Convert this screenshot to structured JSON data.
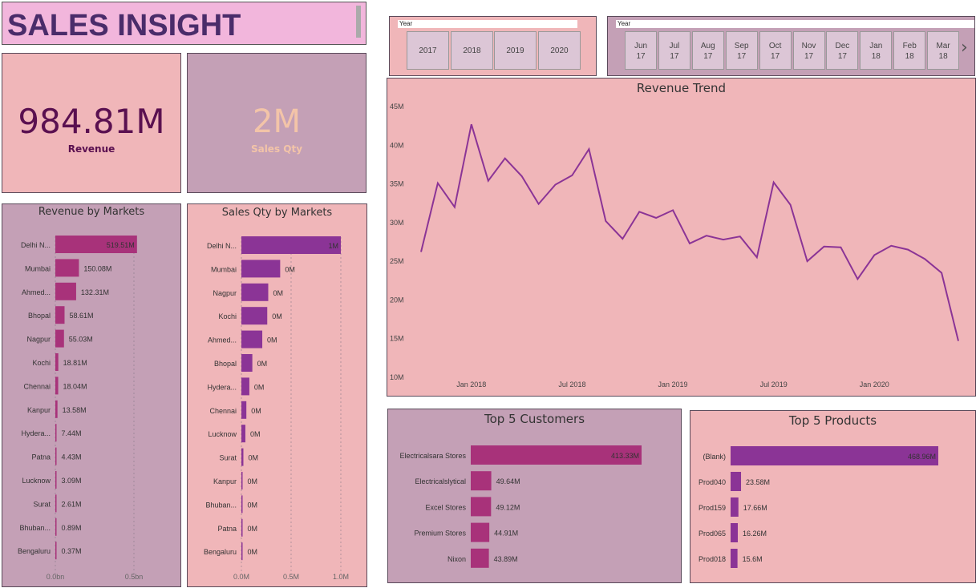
{
  "header": {
    "title": "SALES INSIGHT"
  },
  "kpi": {
    "revenue_value": "984.81M",
    "revenue_label": "Revenue",
    "qty_value": "2M",
    "qty_label": "Sales Qty"
  },
  "slicers": {
    "year_label": "Year",
    "years": [
      "2017",
      "2018",
      "2019",
      "2020"
    ],
    "month_label": "Year",
    "months": [
      {
        "m": "Jun",
        "y": "17"
      },
      {
        "m": "Jul",
        "y": "17"
      },
      {
        "m": "Aug",
        "y": "17"
      },
      {
        "m": "Sep",
        "y": "17"
      },
      {
        "m": "Oct",
        "y": "17"
      },
      {
        "m": "Nov",
        "y": "17"
      },
      {
        "m": "Dec",
        "y": "17"
      },
      {
        "m": "Jan",
        "y": "18"
      },
      {
        "m": "Feb",
        "y": "18"
      },
      {
        "m": "Mar",
        "y": "18"
      }
    ],
    "next_arrow": "›"
  },
  "colors": {
    "bar_magenta": "#a8327a",
    "bar_purple": "#8b3496",
    "line": "#8b3496",
    "grid": "#c9a4ad"
  },
  "chart_data": [
    {
      "id": "revenue_by_markets",
      "type": "bar",
      "orientation": "horizontal",
      "title": "Revenue by Markets",
      "categories": [
        "Delhi N...",
        "Mumbai",
        "Ahmed...",
        "Bhopal",
        "Nagpur",
        "Kochi",
        "Chennai",
        "Kanpur",
        "Hydera...",
        "Patna",
        "Lucknow",
        "Surat",
        "Bhuban...",
        "Bengaluru"
      ],
      "values": [
        519.51,
        150.08,
        132.31,
        58.61,
        55.03,
        18.81,
        18.04,
        13.58,
        7.44,
        4.43,
        3.09,
        2.61,
        0.89,
        0.37
      ],
      "labels": [
        "519.51M",
        "150.08M",
        "132.31M",
        "58.61M",
        "55.03M",
        "18.81M",
        "18.04M",
        "13.58M",
        "7.44M",
        "4.43M",
        "3.09M",
        "2.61M",
        "0.89M",
        "0.37M"
      ],
      "xticks": [
        "0.0bn",
        "0.5bn"
      ],
      "xlim": [
        0,
        500
      ]
    },
    {
      "id": "sales_qty_by_markets",
      "type": "bar",
      "orientation": "horizontal",
      "title": "Sales Qty by Markets",
      "categories": [
        "Delhi N...",
        "Mumbai",
        "Nagpur",
        "Kochi",
        "Ahmed...",
        "Bhopal",
        "Hydera...",
        "Chennai",
        "Lucknow",
        "Surat",
        "Kanpur",
        "Bhuban...",
        "Patna",
        "Bengaluru"
      ],
      "values": [
        1.0,
        0.39,
        0.27,
        0.26,
        0.21,
        0.11,
        0.08,
        0.05,
        0.04,
        0.02,
        0.01,
        0.01,
        0.005,
        0.004
      ],
      "labels": [
        "1M",
        "0M",
        "0M",
        "0M",
        "0M",
        "0M",
        "0M",
        "0M",
        "0M",
        "0M",
        "0M",
        "0M",
        "0M",
        "0M"
      ],
      "xticks": [
        "0.0M",
        "0.5M",
        "1.0M"
      ],
      "xlim": [
        0,
        1.0
      ]
    },
    {
      "id": "revenue_trend",
      "type": "line",
      "title": "Revenue Trend",
      "x": [
        "2017-10",
        "2017-11",
        "2017-12",
        "2018-01",
        "2018-02",
        "2018-03",
        "2018-04",
        "2018-05",
        "2018-06",
        "2018-07",
        "2018-08",
        "2018-09",
        "2018-10",
        "2018-11",
        "2018-12",
        "2019-01",
        "2019-02",
        "2019-03",
        "2019-04",
        "2019-05",
        "2019-06",
        "2019-07",
        "2019-08",
        "2019-09",
        "2019-10",
        "2019-11",
        "2019-12",
        "2020-01",
        "2020-02",
        "2020-03",
        "2020-04",
        "2020-05",
        "2020-06"
      ],
      "values": [
        26.1,
        35.0,
        31.9,
        42.6,
        35.3,
        38.2,
        35.9,
        32.3,
        34.8,
        36.0,
        39.4,
        30.1,
        27.8,
        31.3,
        30.5,
        31.5,
        27.2,
        28.2,
        27.7,
        28.1,
        25.4,
        35.1,
        32.2,
        24.9,
        26.8,
        26.7,
        22.6,
        25.7,
        26.9,
        26.4,
        25.2,
        23.4,
        14.6
      ],
      "yticks": [
        "10M",
        "15M",
        "20M",
        "25M",
        "30M",
        "35M",
        "40M",
        "45M"
      ],
      "ylim": [
        10,
        45
      ],
      "xticks": [
        "Jan 2018",
        "Jul 2018",
        "Jan 2019",
        "Jul 2019",
        "Jan 2020"
      ]
    },
    {
      "id": "top5_customers",
      "type": "bar",
      "orientation": "horizontal",
      "title": "Top 5 Customers",
      "categories": [
        "Electricalsara Stores",
        "Electricalslytical",
        "Excel Stores",
        "Premium Stores",
        "Nixon"
      ],
      "values": [
        413.33,
        49.64,
        49.12,
        44.91,
        43.89
      ],
      "labels": [
        "413.33M",
        "49.64M",
        "49.12M",
        "44.91M",
        "43.89M"
      ],
      "xlim": [
        0,
        413.33
      ]
    },
    {
      "id": "top5_products",
      "type": "bar",
      "orientation": "horizontal",
      "title": "Top 5 Products",
      "categories": [
        "(Blank)",
        "Prod040",
        "Prod159",
        "Prod065",
        "Prod018"
      ],
      "values": [
        468.96,
        23.58,
        17.66,
        16.26,
        15.6
      ],
      "labels": [
        "468.96M",
        "23.58M",
        "17.66M",
        "16.26M",
        "15.6M"
      ],
      "xlim": [
        0,
        468.96
      ]
    }
  ]
}
